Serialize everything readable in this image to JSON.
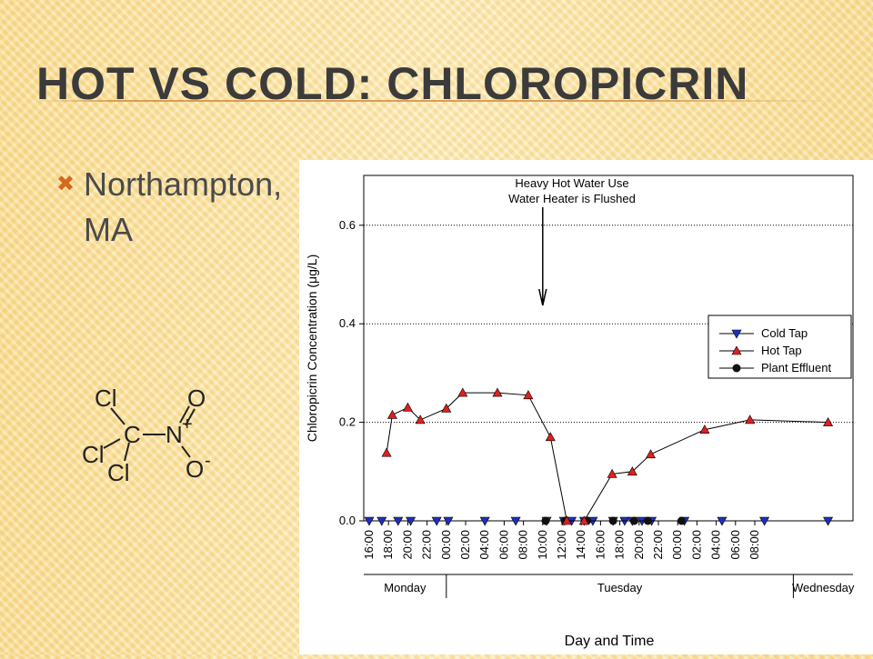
{
  "slide": {
    "title": "Hot vs Cold: Chloropicrin",
    "bullet_icon": "x-mark-bullet-icon",
    "bullet_text": "Northampton, MA"
  },
  "molecule": {
    "labels": {
      "cl_top": "Cl",
      "cl_left": "Cl",
      "cl_bottom": "Cl",
      "carbon": "C",
      "nitrogen": "N",
      "plus": "+",
      "oxygen_top": "O",
      "oxygen_bottom": "O",
      "minus": "-"
    }
  },
  "colors": {
    "cold": "#1f2fbf",
    "hot": "#e02020",
    "plant": "#111111",
    "accent": "#d46a1a"
  },
  "chart_data": {
    "type": "line",
    "ylabel": "Chloropicrin Concentration (μg/L)",
    "xlabel": "Day and Time",
    "ylim": [
      0.0,
      0.7
    ],
    "yticks": [
      "0.0",
      "0.2",
      "0.4",
      "0.6"
    ],
    "xticks": [
      "16:00",
      "18:00",
      "20:00",
      "22:00",
      "00:00",
      "02:00",
      "04:00",
      "06:00",
      "08:00",
      "10:00",
      "12:00",
      "14:00",
      "16:00",
      "18:00",
      "20:00",
      "22:00",
      "00:00",
      "02:00",
      "04:00",
      "06:00",
      "08:00"
    ],
    "days": [
      "Monday",
      "Tuesday",
      "Wednesday"
    ],
    "grid": "horizontal dotted",
    "legend_position": "right-middle",
    "annotation": {
      "line1": "Heavy Hot Water Use",
      "line2": "Water Heater is Flushed",
      "x_hours": 18.0
    },
    "series": [
      {
        "name": "Cold Tap",
        "marker": "triangle-down",
        "x": [
          0,
          1.3,
          3,
          4.3,
          7,
          8.2,
          12,
          15.2,
          18.4,
          20.2,
          21,
          22.3,
          23.2,
          25.3,
          26.5,
          27.3,
          28.3,
          29.3,
          32.7,
          36.6,
          41,
          47.6
        ],
        "y": [
          0,
          0,
          0,
          0,
          0,
          0,
          0,
          0,
          0,
          0,
          0,
          0,
          0,
          0,
          0,
          0,
          0,
          0,
          0,
          0,
          0,
          0
        ]
      },
      {
        "name": "Hot Tap",
        "marker": "triangle-up",
        "x": [
          1.8,
          2.4,
          4,
          5.3,
          8,
          9.7,
          13.3,
          16.5,
          18.8,
          20.5,
          22.3,
          25.2,
          27.3,
          29.2,
          34.8,
          39.5,
          47.6
        ],
        "y": [
          0.138,
          0.215,
          0.23,
          0.205,
          0.228,
          0.26,
          0.26,
          0.255,
          0.17,
          0.0,
          0.0,
          0.095,
          0.1,
          0.135,
          0.185,
          0.205,
          0.2
        ]
      },
      {
        "name": "Plant Effluent",
        "marker": "circle",
        "x": [
          18.3,
          20.3,
          22.6,
          25.3,
          27.5,
          28.9,
          32.4
        ],
        "y": [
          0,
          0,
          0,
          0,
          0,
          0,
          0
        ]
      }
    ]
  }
}
